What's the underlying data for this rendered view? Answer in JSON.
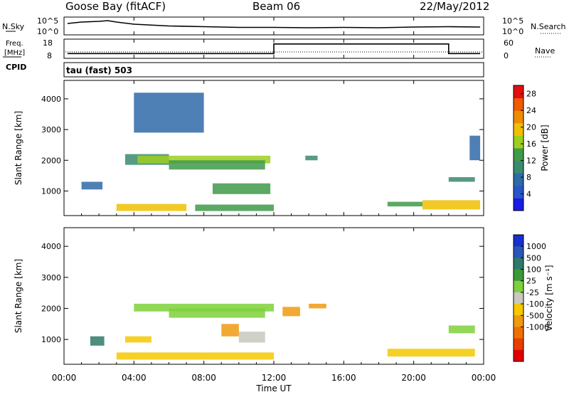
{
  "header": {
    "site": "Goose Bay (fitACF)",
    "beam": "Beam 06",
    "date": "22/May/2012"
  },
  "noise_panel": {
    "left_label": "N.Sky",
    "right_label": "N.Search",
    "ytick_top": "10^5",
    "ytick_bottom": "10^0"
  },
  "freq_panel": {
    "left_label_1": "Freq.",
    "left_label_2": "[MHz]",
    "cpid_label": "CPID",
    "right_label": "Nave",
    "left_ticks": [
      "18",
      "8"
    ],
    "right_ticks": [
      "60",
      "0"
    ]
  },
  "cpid_text": "tau (fast) 503",
  "colors": {
    "power_scale": [
      "#1a1ae6",
      "#2a55c8",
      "#2f6aa8",
      "#3a8a70",
      "#3f9a4a",
      "#9ccf20",
      "#f0c000",
      "#f08c00",
      "#f05a00",
      "#e01010"
    ],
    "velocity_scale": [
      "#1a2fcf",
      "#2c55b8",
      "#2e7a6a",
      "#3a9a3a",
      "#7ed13a",
      "#c8c8c0",
      "#f5c800",
      "#f09a10",
      "#f07000",
      "#e83e00",
      "#e00000"
    ]
  },
  "chart_data": [
    {
      "type": "heatmap",
      "name": "power",
      "ylabel": "Slant Range [km]",
      "yticks": [
        "1000",
        "2000",
        "3000",
        "4000"
      ],
      "ylim": [
        200,
        4600
      ],
      "xlim": [
        0,
        24
      ],
      "colorbar_label": "Power [dB]",
      "colorbar_ticks": [
        "4",
        "8",
        "12",
        "16",
        "20",
        "24",
        "28"
      ],
      "colorbar_range": [
        0,
        30
      ],
      "patches": [
        {
          "t0": 1.0,
          "t1": 2.2,
          "r0": 1050,
          "r1": 1300,
          "value": 8
        },
        {
          "t0": 3.5,
          "t1": 6.0,
          "r0": 1850,
          "r1": 2200,
          "value": 10
        },
        {
          "t0": 4.2,
          "t1": 11.8,
          "r0": 1900,
          "r1": 2150,
          "value": 16
        },
        {
          "t0": 6.0,
          "t1": 11.5,
          "r0": 1700,
          "r1": 2000,
          "value": 12
        },
        {
          "t0": 8.5,
          "t1": 11.8,
          "r0": 900,
          "r1": 1250,
          "value": 14
        },
        {
          "t0": 3.0,
          "t1": 7.0,
          "r0": 350,
          "r1": 580,
          "value": 18
        },
        {
          "t0": 7.5,
          "t1": 12.0,
          "r0": 350,
          "r1": 560,
          "value": 12
        },
        {
          "t0": 4.0,
          "t1": 8.0,
          "r0": 2900,
          "r1": 4200,
          "value": 6
        },
        {
          "t0": 18.5,
          "t1": 20.5,
          "r0": 500,
          "r1": 650,
          "value": 14
        },
        {
          "t0": 20.5,
          "t1": 23.8,
          "r0": 400,
          "r1": 700,
          "value": 20
        },
        {
          "t0": 22.0,
          "t1": 23.5,
          "r0": 1300,
          "r1": 1450,
          "value": 10
        },
        {
          "t0": 13.8,
          "t1": 14.5,
          "r0": 2000,
          "r1": 2150,
          "value": 10
        },
        {
          "t0": 23.2,
          "t1": 23.8,
          "r0": 2000,
          "r1": 2800,
          "value": 6
        }
      ]
    },
    {
      "type": "heatmap",
      "name": "velocity",
      "ylabel": "Slant Range [km]",
      "yticks": [
        "1000",
        "2000",
        "3000",
        "4000"
      ],
      "ylim": [
        200,
        4600
      ],
      "xlim": [
        0,
        24
      ],
      "xticks": [
        "00:00",
        "04:00",
        "08:00",
        "12:00",
        "16:00",
        "20:00",
        "00:00"
      ],
      "xlabel": "Time UT",
      "colorbar_label": "Velocity [m s⁻¹]",
      "colorbar_ticks": [
        "1000",
        "500",
        "100",
        "25",
        "-25",
        "-100",
        "-500",
        "-1000"
      ],
      "patches": [
        {
          "t0": 4.0,
          "t1": 12.0,
          "r0": 1900,
          "r1": 2150,
          "value": 0
        },
        {
          "t0": 6.0,
          "t1": 11.5,
          "r0": 1700,
          "r1": 2000,
          "value": 0
        },
        {
          "t0": 9.0,
          "t1": 10.0,
          "r0": 1100,
          "r1": 1500,
          "value": -600
        },
        {
          "t0": 3.5,
          "t1": 5.0,
          "r0": 900,
          "r1": 1100,
          "value": -150
        },
        {
          "t0": 3.0,
          "t1": 12.0,
          "r0": 350,
          "r1": 580,
          "value": -200
        },
        {
          "t0": 10.0,
          "t1": 11.5,
          "r0": 900,
          "r1": 1250,
          "value": -60
        },
        {
          "t0": 12.5,
          "t1": 13.5,
          "r0": 1750,
          "r1": 2050,
          "value": -700
        },
        {
          "t0": 14.0,
          "t1": 15.0,
          "r0": 2000,
          "r1": 2150,
          "value": -600
        },
        {
          "t0": 18.5,
          "t1": 23.5,
          "r0": 450,
          "r1": 700,
          "value": -150
        },
        {
          "t0": 22.0,
          "t1": 23.5,
          "r0": 1200,
          "r1": 1450,
          "value": 0
        },
        {
          "t0": 1.5,
          "t1": 2.3,
          "r0": 800,
          "r1": 1100,
          "value": 200
        }
      ]
    },
    {
      "type": "line",
      "name": "noise",
      "ylim": [
        0,
        5
      ],
      "xlim": [
        0,
        24
      ],
      "x": [
        0.2,
        1,
        2,
        2.5,
        3,
        4,
        6,
        8,
        10,
        12,
        14,
        16,
        18,
        20,
        22,
        23.8
      ],
      "series": [
        {
          "values": [
            3.2,
            3.6,
            3.8,
            4.0,
            3.6,
            3.0,
            2.5,
            2.3,
            2.1,
            2.1,
            2.0,
            2.1,
            2.0,
            2.2,
            2.3,
            2.2
          ]
        }
      ]
    },
    {
      "type": "line",
      "name": "frequency",
      "ylim": [
        8,
        18
      ],
      "xlim": [
        0,
        24
      ],
      "x": [
        0.2,
        12.0,
        12.0,
        22.0,
        22.0,
        23.8
      ],
      "series": [
        {
          "values": [
            10.5,
            10.5,
            15.5,
            15.5,
            10.5,
            10.5
          ]
        }
      ]
    }
  ]
}
